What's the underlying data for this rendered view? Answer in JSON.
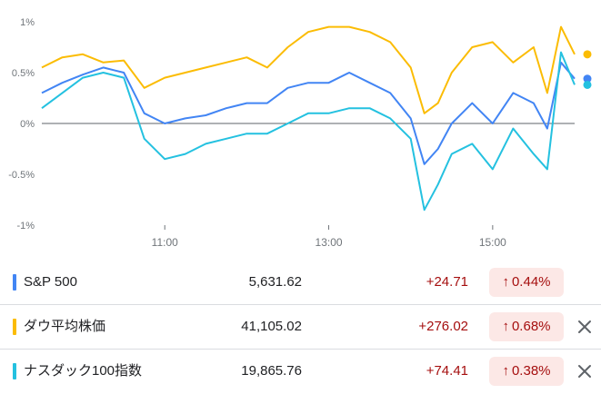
{
  "chart_data": {
    "type": "line",
    "y_ticks": [
      "1%",
      "0.5%",
      "0%",
      "-0.5%",
      "-1%"
    ],
    "y_tick_values": [
      1,
      0.5,
      0,
      -0.5,
      -1
    ],
    "x_ticks": [
      "11:00",
      "13:00",
      "15:00"
    ],
    "ylim": [
      -1.0,
      1.0
    ],
    "xlim": [
      "09:30",
      "16:00"
    ],
    "zero_line": true,
    "grid": false,
    "series": [
      {
        "name": "S&P 500",
        "color": "#4285f4",
        "x": [
          "09:30",
          "09:45",
          "10:00",
          "10:15",
          "10:30",
          "10:45",
          "11:00",
          "11:15",
          "11:30",
          "11:45",
          "12:00",
          "12:15",
          "12:30",
          "12:45",
          "13:00",
          "13:15",
          "13:30",
          "13:45",
          "14:00",
          "14:10",
          "14:20",
          "14:30",
          "14:45",
          "15:00",
          "15:15",
          "15:30",
          "15:40",
          "15:50",
          "16:00"
        ],
        "y": [
          0.3,
          0.4,
          0.48,
          0.55,
          0.5,
          0.1,
          0.0,
          0.05,
          0.08,
          0.15,
          0.2,
          0.2,
          0.35,
          0.4,
          0.4,
          0.5,
          0.4,
          0.3,
          0.05,
          -0.4,
          -0.25,
          0.0,
          0.2,
          0.0,
          0.3,
          0.2,
          -0.05,
          0.6,
          0.44
        ]
      },
      {
        "name": "ダウ平均株価",
        "color": "#fbbc04",
        "x": [
          "09:30",
          "09:45",
          "10:00",
          "10:15",
          "10:30",
          "10:45",
          "11:00",
          "11:15",
          "11:30",
          "11:45",
          "12:00",
          "12:15",
          "12:30",
          "12:45",
          "13:00",
          "13:15",
          "13:30",
          "13:45",
          "14:00",
          "14:10",
          "14:20",
          "14:30",
          "14:45",
          "15:00",
          "15:15",
          "15:30",
          "15:40",
          "15:50",
          "16:00"
        ],
        "y": [
          0.55,
          0.65,
          0.68,
          0.6,
          0.62,
          0.35,
          0.45,
          0.5,
          0.55,
          0.6,
          0.65,
          0.55,
          0.75,
          0.9,
          0.95,
          0.95,
          0.9,
          0.8,
          0.55,
          0.1,
          0.2,
          0.5,
          0.75,
          0.8,
          0.6,
          0.75,
          0.3,
          0.95,
          0.68
        ]
      },
      {
        "name": "ナスダック100指数",
        "color": "#24c1e0",
        "x": [
          "09:30",
          "09:45",
          "10:00",
          "10:15",
          "10:30",
          "10:45",
          "11:00",
          "11:15",
          "11:30",
          "11:45",
          "12:00",
          "12:15",
          "12:30",
          "12:45",
          "13:00",
          "13:15",
          "13:30",
          "13:45",
          "14:00",
          "14:10",
          "14:20",
          "14:30",
          "14:45",
          "15:00",
          "15:15",
          "15:30",
          "15:40",
          "15:50",
          "16:00"
        ],
        "y": [
          0.15,
          0.3,
          0.45,
          0.5,
          0.45,
          -0.15,
          -0.35,
          -0.3,
          -0.2,
          -0.15,
          -0.1,
          -0.1,
          0.0,
          0.1,
          0.1,
          0.15,
          0.15,
          0.05,
          -0.15,
          -0.85,
          -0.6,
          -0.3,
          -0.2,
          -0.45,
          -0.05,
          -0.3,
          -0.45,
          0.7,
          0.38
        ]
      }
    ]
  },
  "rows": [
    {
      "name": "S&P 500",
      "color": "#4285f4",
      "price": "5,631.62",
      "change": "+24.71",
      "arrow": "↑",
      "pct": "0.44%"
    },
    {
      "name": "ダウ平均株価",
      "color": "#fbbc04",
      "price": "41,105.02",
      "change": "+276.02",
      "arrow": "↑",
      "pct": "0.68%",
      "remove_icon": "close-icon"
    },
    {
      "name": "ナスダック100指数",
      "color": "#24c1e0",
      "price": "19,865.76",
      "change": "+74.41",
      "arrow": "↑",
      "pct": "0.38%",
      "remove_icon": "close-icon"
    }
  ]
}
